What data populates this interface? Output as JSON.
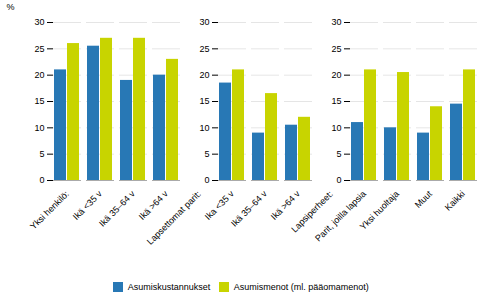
{
  "chart_data": {
    "type": "bar",
    "categories": [
      "Yksi henkilö:",
      "Ikä <35 v",
      "Ikä 35–64 v",
      "Ikä >64 v",
      "Lapsettomat parit:",
      "Ika <35 v",
      "Ikä 35–64 v",
      "Ikä >64 v",
      "Lapsiperheet:",
      "Parit, joilla lapsia",
      "Yksi huoltaja",
      "Muut",
      "Kaikki"
    ],
    "series": [
      {
        "name": "Asumiskustannukset",
        "color": "#2878B5",
        "values": [
          21,
          25.5,
          19,
          20,
          null,
          18.5,
          9,
          10.5,
          null,
          11,
          10,
          9,
          14.5
        ]
      },
      {
        "name": "Asumismenot (ml. pääomamenot)",
        "color": "#C8D400",
        "values": [
          26,
          27,
          27,
          23,
          null,
          21,
          16.5,
          12,
          null,
          21,
          20.5,
          14,
          21
        ]
      }
    ],
    "ylabel": "%",
    "ylim": [
      0,
      30
    ],
    "yticks": [
      0,
      5,
      10,
      15,
      20,
      25,
      30
    ],
    "grid": true,
    "legend": "bottom"
  }
}
